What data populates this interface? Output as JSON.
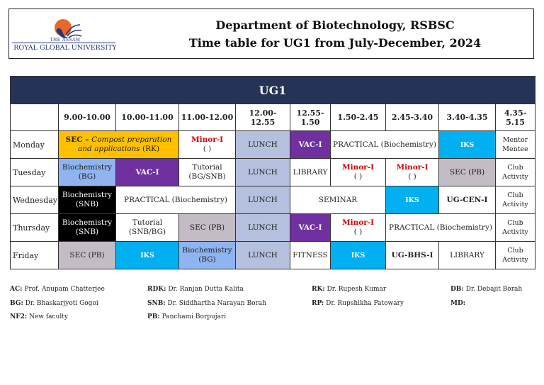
{
  "header": {
    "logo_text_top": "The Assam",
    "logo_text": "Royal Global University",
    "title_line1": "Department of Biotechnology, RSBSC",
    "title_line2": "Time table for UG1 from July-December, 2024"
  },
  "table": {
    "band": "UG1",
    "columns": [
      "",
      "9.00-10.00",
      "10.00-11.00",
      "11.00-12.00",
      "12.00-12.55",
      "12.55-1.50",
      "1.50-2.45",
      "2.45-3.40",
      "3.40-4.35",
      "4.35-5.15"
    ],
    "rows": [
      {
        "day": "Monday",
        "cells": [
          {
            "text": "SEC – ",
            "italic": "Compost preparation and applications",
            "tail": " (RK)",
            "span": 2,
            "cls": "yellow"
          },
          {
            "text": "Minor-I",
            "sub": "(      )",
            "cls": "red"
          },
          {
            "text": "LUNCH",
            "cls": "lunch"
          },
          {
            "text": "VAC-I",
            "cls": "purple"
          },
          {
            "text": "PRACTICAL (Biochemistry)",
            "span": 2
          },
          {
            "text": "IKS",
            "cls": "cyan"
          },
          {
            "text": "Mentor",
            "sub": "Mentee",
            "cls": "small"
          }
        ]
      },
      {
        "day": "Tuesday",
        "cells": [
          {
            "text": "Biochemistry",
            "sub": "(BG)",
            "cls": "blue"
          },
          {
            "text": "VAC-I",
            "cls": "purple"
          },
          {
            "text": "Tutorial",
            "sub": "(BG/SNB)"
          },
          {
            "text": "LUNCH",
            "cls": "lunch"
          },
          {
            "text": "LIBRARY"
          },
          {
            "text": "Minor-I",
            "sub": "(      )",
            "cls": "red"
          },
          {
            "text": "Minor-I",
            "sub": "(      )",
            "cls": "red"
          },
          {
            "text": "SEC (PB)",
            "cls": "grey"
          },
          {
            "text": "Club",
            "sub": "Activity",
            "cls": "small"
          }
        ]
      },
      {
        "day": "Wednesday",
        "cells": [
          {
            "text": "Biochemistry",
            "sub": "(SNB)",
            "cls": "black"
          },
          {
            "text": "PRACTICAL (Biochemistry)",
            "span": 2
          },
          {
            "text": "LUNCH",
            "cls": "lunch"
          },
          {
            "text": "SEMINAR",
            "span": 2
          },
          {
            "text": "IKS",
            "cls": "cyan"
          },
          {
            "text": "UG-CEN-I",
            "cls": "bold"
          },
          {
            "text": "Club",
            "sub": "Activity",
            "cls": "small"
          }
        ]
      },
      {
        "day": "Thursday",
        "cells": [
          {
            "text": "Biochemistry",
            "sub": "(SNB)",
            "cls": "black"
          },
          {
            "text": "Tutorial",
            "sub": "(SNB/BG)"
          },
          {
            "text": "SEC (PB)",
            "cls": "grey"
          },
          {
            "text": "LUNCH",
            "cls": "lunch"
          },
          {
            "text": "VAC-I",
            "cls": "purple"
          },
          {
            "text": "Minor-I",
            "sub": "(      )",
            "cls": "red"
          },
          {
            "text": "PRACTICAL (Biochemistry)",
            "span": 2
          },
          {
            "text": "Club",
            "sub": "Activity",
            "cls": "small"
          }
        ]
      },
      {
        "day": "Friday",
        "cells": [
          {
            "text": "SEC (PB)",
            "cls": "grey"
          },
          {
            "text": "IKS",
            "cls": "cyan"
          },
          {
            "text": "Biochemistry",
            "sub": "(BG)",
            "cls": "blue"
          },
          {
            "text": "LUNCH",
            "cls": "lunch"
          },
          {
            "text": "FITNESS"
          },
          {
            "text": "IKS",
            "cls": "cyan"
          },
          {
            "text": "UG-BHS-I",
            "cls": "bold"
          },
          {
            "text": "LIBRARY"
          },
          {
            "text": "Club",
            "sub": "Activity",
            "cls": "small"
          }
        ]
      }
    ]
  },
  "legend": [
    {
      "code": "AC:",
      "name": "Prof. Anupam Chatterjee"
    },
    {
      "code": "RDK:",
      "name": "Dr. Ranjan Dutta Kalita"
    },
    {
      "code": "RK:",
      "name": "Dr. Rupesh Kumar"
    },
    {
      "code": "DB:",
      "name": "Dr. Debajit Borah"
    },
    {
      "code": "BG:",
      "name": "Dr. Bhaskarjyoti Gogoi"
    },
    {
      "code": "SNB:",
      "name": "Dr. Siddhartha Narayan Borah"
    },
    {
      "code": "RP:",
      "name": "Dr. Rupshikha Patowary"
    },
    {
      "code": "MD:",
      "name": ""
    },
    {
      "code": "NF2:",
      "name": "New faculty"
    },
    {
      "code": "PB:",
      "name": "Panchami Borpujari"
    }
  ]
}
